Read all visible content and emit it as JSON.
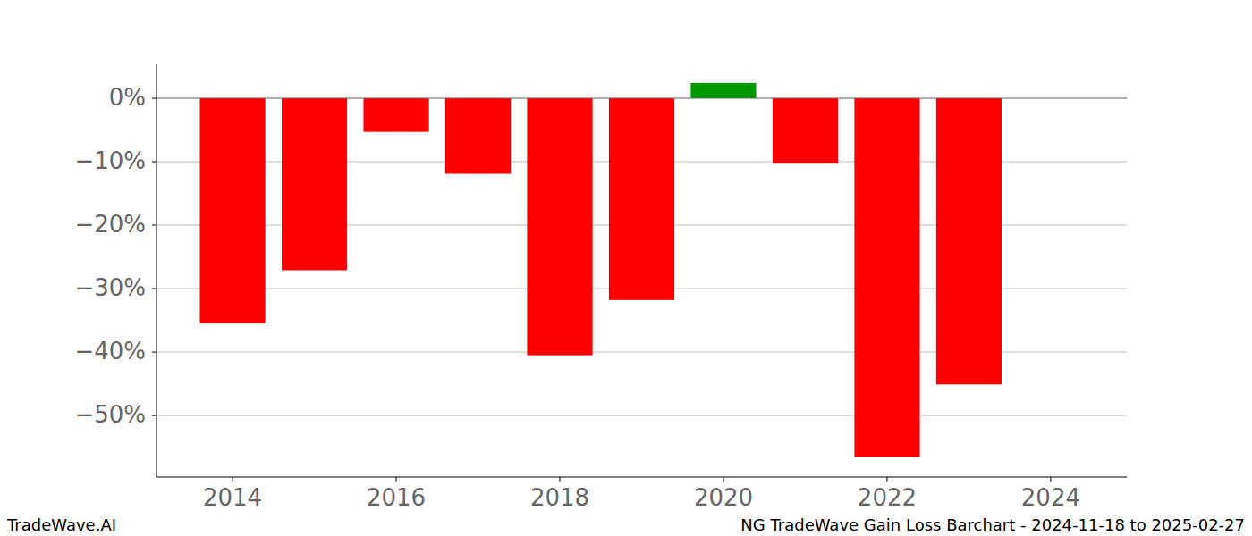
{
  "chart_data": {
    "type": "bar",
    "title": "NG TradeWave Gain Loss Barchart - 2024-11-18 to 2025-02-27",
    "annotations": [
      "TradeWave.AI"
    ],
    "x": [
      2014,
      2015,
      2016,
      2017,
      2018,
      2019,
      2020,
      2021,
      2022,
      2023
    ],
    "values": [
      -35.5,
      -27.1,
      -5.3,
      -11.9,
      -40.5,
      -31.8,
      2.4,
      -10.3,
      -56.6,
      -45.1
    ],
    "colors": [
      "#ff0000",
      "#ff0000",
      "#ff0000",
      "#ff0000",
      "#ff0000",
      "#ff0000",
      "#009900",
      "#ff0000",
      "#ff0000",
      "#ff0000"
    ],
    "xlim": [
      2013.07,
      2024.93
    ],
    "xticks": [
      2014,
      2016,
      2018,
      2020,
      2022,
      2024
    ],
    "ylim": [
      -59.7,
      5.35
    ],
    "yticks": [
      {
        "value": -50,
        "label": "−50%"
      },
      {
        "value": -40,
        "label": "−40%"
      },
      {
        "value": -30,
        "label": "−30%"
      },
      {
        "value": -20,
        "label": "−20%"
      },
      {
        "value": -10,
        "label": "−10%"
      },
      {
        "value": 0,
        "label": "0%"
      }
    ],
    "grid": true
  }
}
